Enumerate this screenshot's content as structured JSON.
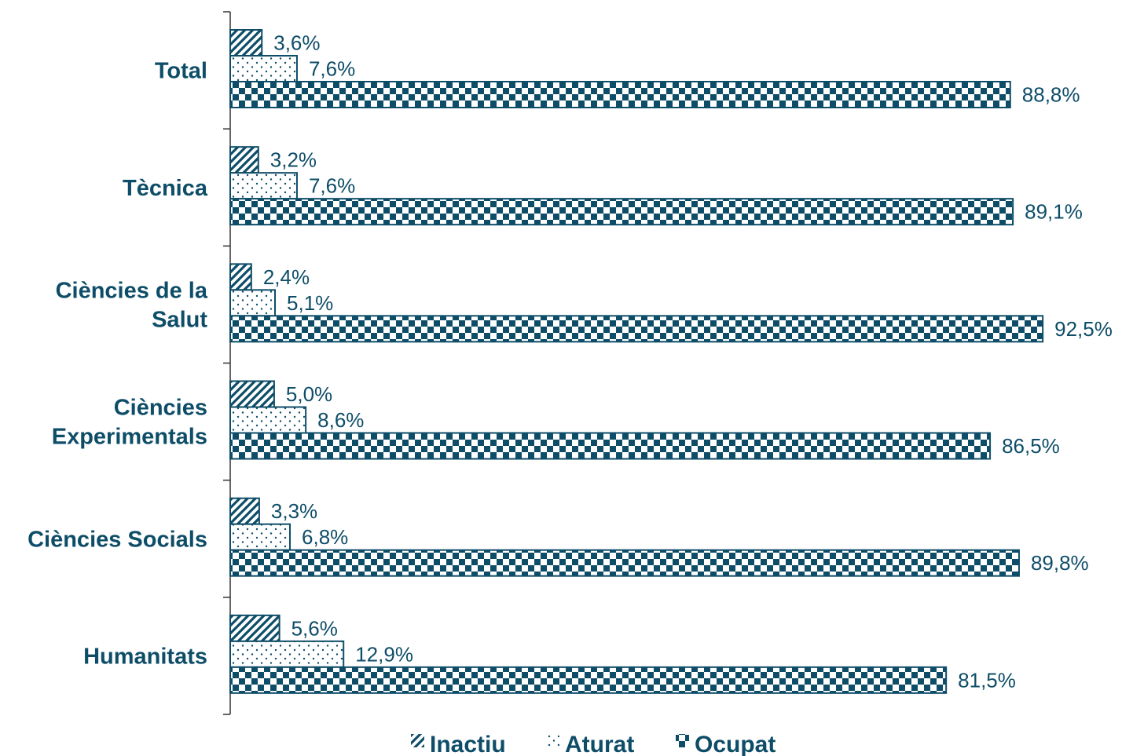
{
  "chart_data": {
    "type": "bar",
    "orientation": "horizontal",
    "categories": [
      [
        "Total"
      ],
      [
        "Tècnica"
      ],
      [
        "Ciències de la",
        "Salut"
      ],
      [
        "Ciències",
        "Experimentals"
      ],
      [
        "Ciències Socials"
      ],
      [
        "Humanitats"
      ]
    ],
    "series": [
      {
        "name": "Inactiu",
        "pattern": "hatch",
        "values": [
          3.6,
          3.2,
          2.4,
          5.0,
          3.3,
          5.6
        ],
        "labels": [
          "3,6%",
          "3,2%",
          "2,4%",
          "5,0%",
          "3,3%",
          "5,6%"
        ]
      },
      {
        "name": "Aturat",
        "pattern": "dots",
        "values": [
          7.6,
          7.6,
          5.1,
          8.6,
          6.8,
          12.9
        ],
        "labels": [
          "7,6%",
          "7,6%",
          "5,1%",
          "8,6%",
          "6,8%",
          "12,9%"
        ]
      },
      {
        "name": "Ocupat",
        "pattern": "checker",
        "values": [
          88.8,
          89.1,
          92.5,
          86.5,
          89.8,
          81.5
        ],
        "labels": [
          "88,8%",
          "89,1%",
          "92,5%",
          "86,5%",
          "89,8%",
          "81,5%"
        ]
      }
    ],
    "xlim": [
      0,
      100
    ],
    "grid": false,
    "legend": "bottom",
    "colors": {
      "primary": "#0e4d68",
      "background": "#ffffff"
    }
  }
}
